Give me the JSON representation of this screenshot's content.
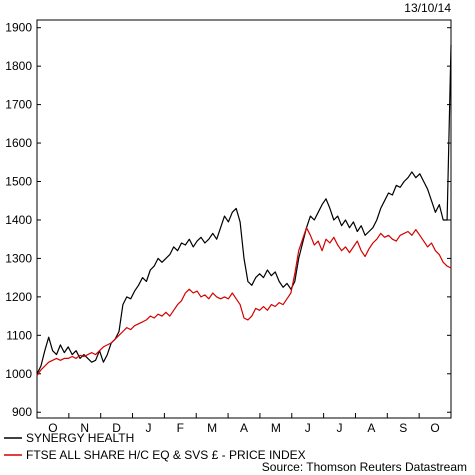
{
  "chart_data": {
    "type": "line",
    "date_label": "13/10/14",
    "source": "Source: Thomson Reuters Datastream",
    "yticks": [
      900,
      1000,
      1100,
      1200,
      1300,
      1400,
      1500,
      1600,
      1700,
      1800,
      1900
    ],
    "ylim": [
      885,
      1920
    ],
    "xticks": [
      "O",
      "N",
      "D",
      "J",
      "F",
      "M",
      "A",
      "M",
      "J",
      "J",
      "A",
      "S",
      "O"
    ],
    "x_unit": "weeks",
    "xlim": [
      0,
      53
    ],
    "series": [
      {
        "name": "SYNERGY HEALTH",
        "color": "#000000",
        "points": [
          [
            0,
            1000
          ],
          [
            0.5,
            1020
          ],
          [
            1,
            1060
          ],
          [
            1.5,
            1095
          ],
          [
            2,
            1060
          ],
          [
            2.5,
            1050
          ],
          [
            3,
            1075
          ],
          [
            3.5,
            1055
          ],
          [
            4,
            1070
          ],
          [
            4.5,
            1050
          ],
          [
            5,
            1060
          ],
          [
            5.5,
            1040
          ],
          [
            6,
            1050
          ],
          [
            6.5,
            1040
          ],
          [
            7,
            1030
          ],
          [
            7.5,
            1035
          ],
          [
            8,
            1060
          ],
          [
            8.5,
            1030
          ],
          [
            9,
            1050
          ],
          [
            9.5,
            1080
          ],
          [
            10,
            1090
          ],
          [
            10.5,
            1110
          ],
          [
            11,
            1180
          ],
          [
            11.5,
            1200
          ],
          [
            12,
            1195
          ],
          [
            12.5,
            1215
          ],
          [
            13,
            1230
          ],
          [
            13.5,
            1250
          ],
          [
            14,
            1240
          ],
          [
            14.5,
            1270
          ],
          [
            15,
            1280
          ],
          [
            15.5,
            1300
          ],
          [
            16,
            1290
          ],
          [
            16.5,
            1300
          ],
          [
            17,
            1310
          ],
          [
            17.5,
            1330
          ],
          [
            18,
            1320
          ],
          [
            18.5,
            1340
          ],
          [
            19,
            1335
          ],
          [
            19.5,
            1350
          ],
          [
            20,
            1330
          ],
          [
            20.5,
            1345
          ],
          [
            21,
            1355
          ],
          [
            21.5,
            1340
          ],
          [
            22,
            1350
          ],
          [
            22.5,
            1365
          ],
          [
            23,
            1350
          ],
          [
            23.5,
            1380
          ],
          [
            24,
            1410
          ],
          [
            24.5,
            1395
          ],
          [
            25,
            1420
          ],
          [
            25.5,
            1430
          ],
          [
            26,
            1395
          ],
          [
            26.5,
            1300
          ],
          [
            27,
            1240
          ],
          [
            27.5,
            1230
          ],
          [
            28,
            1250
          ],
          [
            28.5,
            1260
          ],
          [
            29,
            1250
          ],
          [
            29.5,
            1270
          ],
          [
            30,
            1255
          ],
          [
            30.5,
            1265
          ],
          [
            31,
            1240
          ],
          [
            31.5,
            1225
          ],
          [
            32,
            1235
          ],
          [
            32.5,
            1220
          ],
          [
            33,
            1240
          ],
          [
            33.5,
            1300
          ],
          [
            34,
            1340
          ],
          [
            34.5,
            1380
          ],
          [
            35,
            1410
          ],
          [
            35.5,
            1400
          ],
          [
            36,
            1420
          ],
          [
            36.5,
            1440
          ],
          [
            37,
            1455
          ],
          [
            37.5,
            1430
          ],
          [
            38,
            1400
          ],
          [
            38.5,
            1410
          ],
          [
            39,
            1385
          ],
          [
            39.5,
            1400
          ],
          [
            40,
            1380
          ],
          [
            40.5,
            1395
          ],
          [
            41,
            1370
          ],
          [
            41.5,
            1385
          ],
          [
            42,
            1360
          ],
          [
            42.5,
            1370
          ],
          [
            43,
            1380
          ],
          [
            43.5,
            1400
          ],
          [
            44,
            1430
          ],
          [
            44.5,
            1450
          ],
          [
            45,
            1470
          ],
          [
            45.5,
            1465
          ],
          [
            46,
            1490
          ],
          [
            46.5,
            1485
          ],
          [
            47,
            1500
          ],
          [
            47.5,
            1510
          ],
          [
            48,
            1525
          ],
          [
            48.5,
            1510
          ],
          [
            49,
            1520
          ],
          [
            49.5,
            1500
          ],
          [
            50,
            1480
          ],
          [
            50.5,
            1450
          ],
          [
            51,
            1420
          ],
          [
            51.5,
            1440
          ],
          [
            52,
            1400
          ],
          [
            52.5,
            1400
          ],
          [
            53,
            1855
          ]
        ]
      },
      {
        "name": "FTSE ALL SHARE H/C EQ & SVS £ - PRICE INDEX",
        "color": "#d40000",
        "points": [
          [
            0,
            995
          ],
          [
            0.5,
            1010
          ],
          [
            1,
            1020
          ],
          [
            1.5,
            1030
          ],
          [
            2,
            1035
          ],
          [
            2.5,
            1040
          ],
          [
            3,
            1035
          ],
          [
            3.5,
            1040
          ],
          [
            4,
            1040
          ],
          [
            4.5,
            1045
          ],
          [
            5,
            1040
          ],
          [
            5.5,
            1048
          ],
          [
            6,
            1045
          ],
          [
            6.5,
            1050
          ],
          [
            7,
            1055
          ],
          [
            7.5,
            1050
          ],
          [
            8,
            1060
          ],
          [
            8.5,
            1070
          ],
          [
            9,
            1075
          ],
          [
            9.5,
            1080
          ],
          [
            10,
            1090
          ],
          [
            10.5,
            1100
          ],
          [
            11,
            1110
          ],
          [
            11.5,
            1120
          ],
          [
            12,
            1115
          ],
          [
            12.5,
            1125
          ],
          [
            13,
            1130
          ],
          [
            13.5,
            1135
          ],
          [
            14,
            1140
          ],
          [
            14.5,
            1150
          ],
          [
            15,
            1145
          ],
          [
            15.5,
            1155
          ],
          [
            16,
            1150
          ],
          [
            16.5,
            1160
          ],
          [
            17,
            1150
          ],
          [
            17.5,
            1165
          ],
          [
            18,
            1180
          ],
          [
            18.5,
            1190
          ],
          [
            19,
            1210
          ],
          [
            19.5,
            1220
          ],
          [
            20,
            1210
          ],
          [
            20.5,
            1215
          ],
          [
            21,
            1200
          ],
          [
            21.5,
            1205
          ],
          [
            22,
            1195
          ],
          [
            22.5,
            1210
          ],
          [
            23,
            1200
          ],
          [
            23.5,
            1195
          ],
          [
            24,
            1200
          ],
          [
            24.5,
            1195
          ],
          [
            25,
            1210
          ],
          [
            25.5,
            1195
          ],
          [
            26,
            1180
          ],
          [
            26.5,
            1145
          ],
          [
            27,
            1140
          ],
          [
            27.5,
            1150
          ],
          [
            28,
            1170
          ],
          [
            28.5,
            1165
          ],
          [
            29,
            1175
          ],
          [
            29.5,
            1165
          ],
          [
            30,
            1180
          ],
          [
            30.5,
            1175
          ],
          [
            31,
            1185
          ],
          [
            31.5,
            1180
          ],
          [
            32,
            1195
          ],
          [
            32.5,
            1210
          ],
          [
            33,
            1260
          ],
          [
            33.5,
            1320
          ],
          [
            34,
            1350
          ],
          [
            34.5,
            1380
          ],
          [
            35,
            1360
          ],
          [
            35.5,
            1335
          ],
          [
            36,
            1345
          ],
          [
            36.5,
            1320
          ],
          [
            37,
            1350
          ],
          [
            37.5,
            1340
          ],
          [
            38,
            1355
          ],
          [
            38.5,
            1335
          ],
          [
            39,
            1320
          ],
          [
            39.5,
            1330
          ],
          [
            40,
            1315
          ],
          [
            40.5,
            1330
          ],
          [
            41,
            1345
          ],
          [
            41.5,
            1320
          ],
          [
            42,
            1305
          ],
          [
            42.5,
            1325
          ],
          [
            43,
            1340
          ],
          [
            43.5,
            1350
          ],
          [
            44,
            1365
          ],
          [
            44.5,
            1355
          ],
          [
            45,
            1360
          ],
          [
            45.5,
            1350
          ],
          [
            46,
            1345
          ],
          [
            46.5,
            1360
          ],
          [
            47,
            1365
          ],
          [
            47.5,
            1370
          ],
          [
            48,
            1360
          ],
          [
            48.5,
            1375
          ],
          [
            49,
            1360
          ],
          [
            49.5,
            1345
          ],
          [
            50,
            1330
          ],
          [
            50.5,
            1340
          ],
          [
            51,
            1320
          ],
          [
            51.5,
            1310
          ],
          [
            52,
            1290
          ],
          [
            52.5,
            1280
          ],
          [
            53,
            1275
          ]
        ]
      }
    ]
  }
}
